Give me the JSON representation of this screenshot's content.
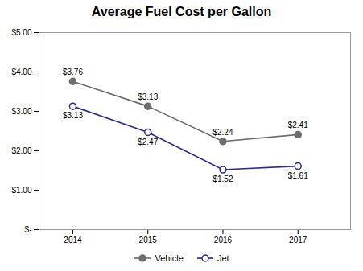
{
  "chart_data": {
    "type": "line",
    "title": "Average Fuel Cost per Gallon",
    "x": [
      2014,
      2015,
      2016,
      2017
    ],
    "series": [
      {
        "name": "Vehicle",
        "color": "#6d6d6d",
        "marker": "circle",
        "values": [
          3.76,
          3.13,
          2.24,
          2.41
        ],
        "value_labels": [
          "$3.76",
          "$3.13",
          "$2.24",
          "$2.41"
        ]
      },
      {
        "name": "Jet",
        "color": "#2e2e8a",
        "marker": "open_circle",
        "values": [
          3.13,
          2.47,
          1.52,
          1.61
        ],
        "value_labels": [
          "$3.13",
          "$2.47",
          "$1.52",
          "$1.61"
        ]
      }
    ],
    "xlim": [
      2013.55,
      2017.7
    ],
    "xticks": [
      2014,
      2015,
      2016,
      2017
    ],
    "ylim": [
      0,
      5.0
    ],
    "yticks": [
      {
        "value": 0,
        "label": "$-"
      },
      {
        "value": 1.0,
        "label": "$1.00"
      },
      {
        "value": 2.0,
        "label": "$2.00"
      },
      {
        "value": 3.0,
        "label": "$3.00"
      },
      {
        "value": 4.0,
        "label": "$4.00"
      },
      {
        "value": 5.0,
        "label": "$5.00"
      }
    ],
    "grid": false,
    "legend": "bottom",
    "data_labels": true
  }
}
